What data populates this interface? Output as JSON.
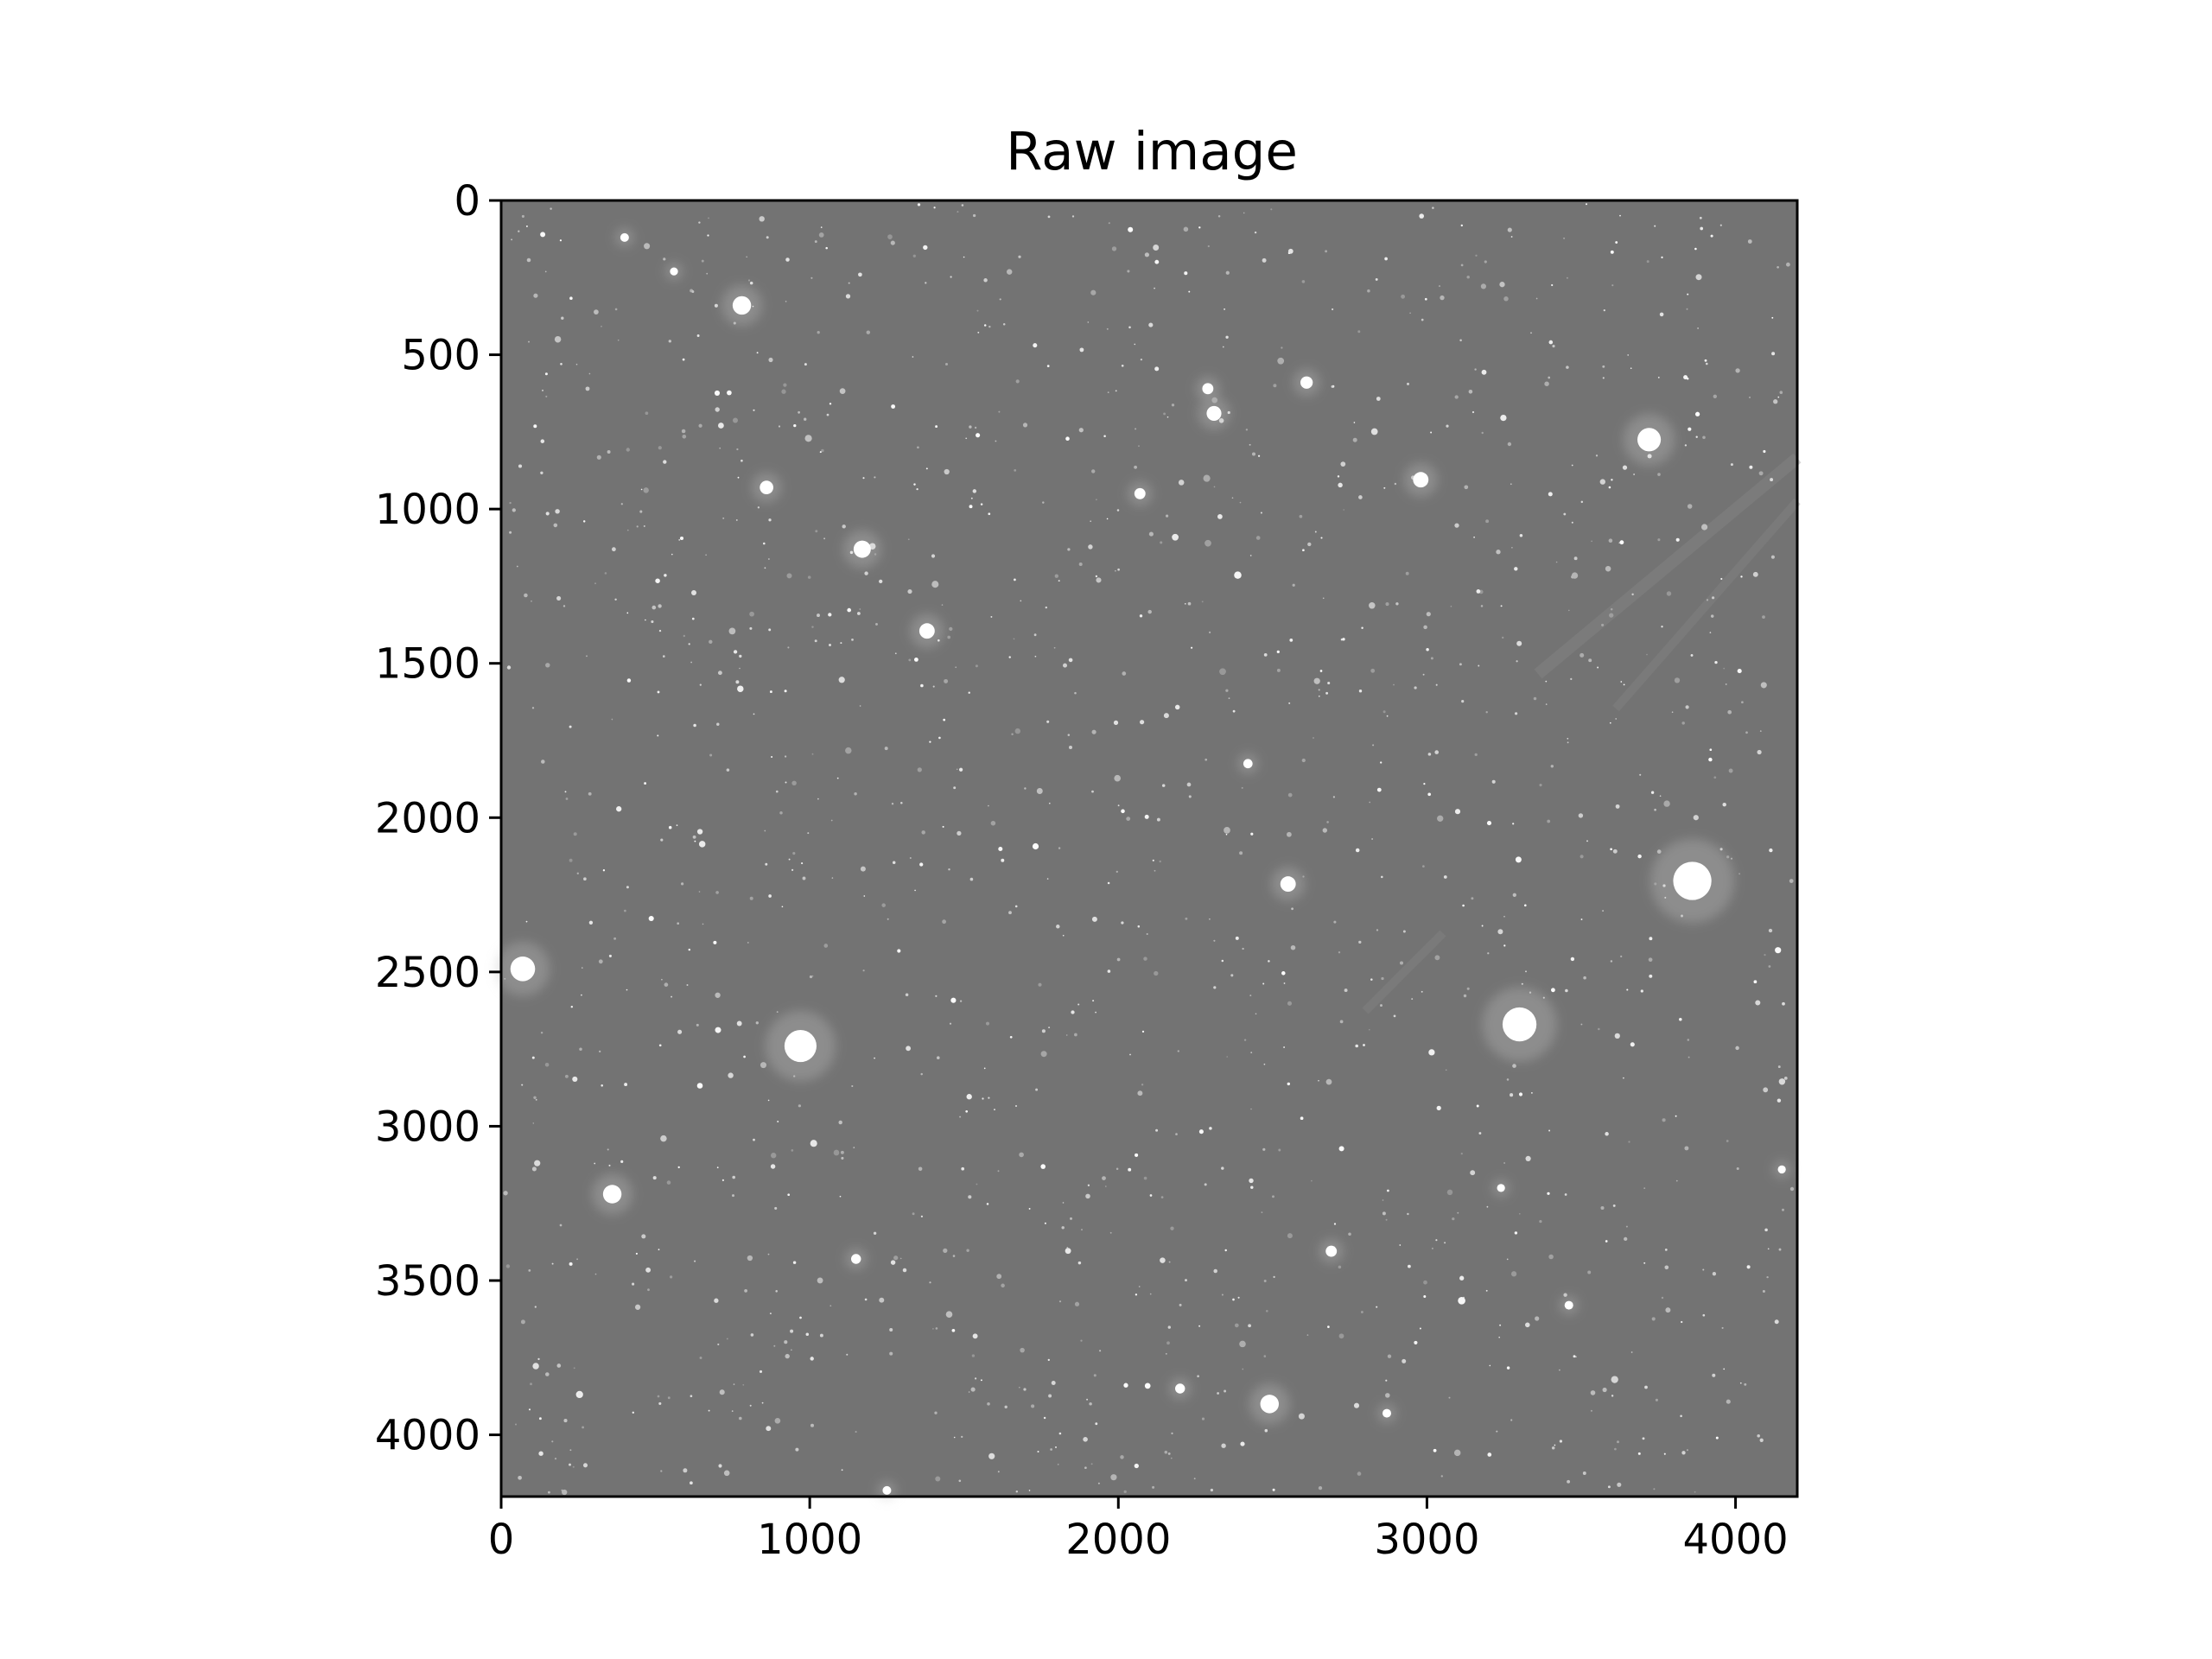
{
  "chart_data": {
    "type": "heatmap",
    "title": "Raw image",
    "xlabel": "",
    "ylabel": "",
    "xlim": [
      0,
      4200
    ],
    "ylim": [
      4200,
      0
    ],
    "y_inverted": true,
    "grid": false,
    "colormap": "gray",
    "background_level": 0.45,
    "x_ticks": [
      0,
      1000,
      2000,
      3000,
      4000
    ],
    "x_tick_labels": [
      "0",
      "1000",
      "2000",
      "3000",
      "4000"
    ],
    "y_ticks": [
      0,
      500,
      1000,
      1500,
      2000,
      2500,
      3000,
      3500,
      4000
    ],
    "y_tick_labels": [
      "0",
      "500",
      "1000",
      "1500",
      "2000",
      "2500",
      "3000",
      "3500",
      "4000"
    ],
    "bright_sources": [
      {
        "x": 780,
        "y": 340,
        "r": 30
      },
      {
        "x": 860,
        "y": 930,
        "r": 22
      },
      {
        "x": 1170,
        "y": 1130,
        "r": 28
      },
      {
        "x": 1380,
        "y": 1395,
        "r": 25
      },
      {
        "x": 2310,
        "y": 690,
        "r": 24
      },
      {
        "x": 2290,
        "y": 610,
        "r": 18
      },
      {
        "x": 2610,
        "y": 590,
        "r": 20
      },
      {
        "x": 2070,
        "y": 950,
        "r": 18
      },
      {
        "x": 2980,
        "y": 905,
        "r": 25
      },
      {
        "x": 3720,
        "y": 775,
        "r": 38
      },
      {
        "x": 2420,
        "y": 1825,
        "r": 15
      },
      {
        "x": 2550,
        "y": 2215,
        "r": 25
      },
      {
        "x": 3860,
        "y": 2205,
        "r": 62
      },
      {
        "x": 70,
        "y": 2490,
        "r": 40
      },
      {
        "x": 970,
        "y": 2740,
        "r": 52
      },
      {
        "x": 3300,
        "y": 2670,
        "r": 55
      },
      {
        "x": 360,
        "y": 3220,
        "r": 30
      },
      {
        "x": 1150,
        "y": 3430,
        "r": 16
      },
      {
        "x": 2690,
        "y": 3405,
        "r": 18
      },
      {
        "x": 2490,
        "y": 3900,
        "r": 30
      },
      {
        "x": 2200,
        "y": 3850,
        "r": 16
      },
      {
        "x": 2870,
        "y": 3930,
        "r": 14
      },
      {
        "x": 1250,
        "y": 4180,
        "r": 14
      },
      {
        "x": 3460,
        "y": 3580,
        "r": 14
      },
      {
        "x": 400,
        "y": 120,
        "r": 14
      },
      {
        "x": 560,
        "y": 230,
        "r": 13
      },
      {
        "x": 4150,
        "y": 3140,
        "r": 13
      },
      {
        "x": 3240,
        "y": 3200,
        "r": 13
      }
    ]
  }
}
